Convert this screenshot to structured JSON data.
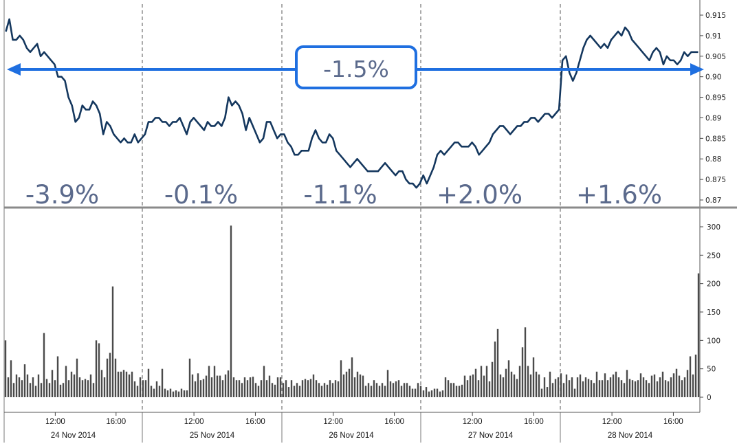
{
  "colors": {
    "price_line": "#14375e",
    "volume_bar": "#4a4a4a",
    "arrow": "#1f6fe0",
    "annotation_text": "#5b6a8c",
    "panel_divider": "#8a8a8a",
    "day_separator": "#555555"
  },
  "chart_data": [
    {
      "type": "line",
      "title": "",
      "xlabel": "",
      "ylabel": "",
      "y_axis_position": "right",
      "ylim": [
        0.87,
        0.915
      ],
      "yticks": [
        "0.915",
        "0.91",
        "0.905",
        "0.90",
        "0.895",
        "0.89",
        "0.885",
        "0.88",
        "0.875",
        "0.87"
      ],
      "days": [
        "24 Nov 2014",
        "25 Nov 2014",
        "26 Nov 2014",
        "27 Nov 2014",
        "28 Nov 2014"
      ],
      "xticks": [
        "12:00",
        "16:00"
      ],
      "series": [
        {
          "x_step": "15-minute intervals, 40 per day",
          "values": [
            0.911,
            0.914,
            0.909,
            0.909,
            0.91,
            0.909,
            0.907,
            0.906,
            0.907,
            0.908,
            0.905,
            0.906,
            0.905,
            0.904,
            0.903,
            0.9,
            0.9,
            0.899,
            0.895,
            0.893,
            0.889,
            0.89,
            0.893,
            0.892,
            0.892,
            0.894,
            0.893,
            0.891,
            0.886,
            0.889,
            0.888,
            0.886,
            0.885,
            0.884,
            0.885,
            0.884,
            0.884,
            0.886,
            0.884,
            0.885,
            0.886,
            0.889,
            0.889,
            0.89,
            0.89,
            0.889,
            0.889,
            0.888,
            0.889,
            0.889,
            0.89,
            0.888,
            0.886,
            0.889,
            0.89,
            0.889,
            0.888,
            0.887,
            0.889,
            0.888,
            0.888,
            0.889,
            0.888,
            0.89,
            0.895,
            0.893,
            0.894,
            0.893,
            0.891,
            0.887,
            0.89,
            0.888,
            0.886,
            0.884,
            0.885,
            0.889,
            0.889,
            0.887,
            0.885,
            0.886,
            0.886,
            0.884,
            0.883,
            0.881,
            0.881,
            0.882,
            0.882,
            0.882,
            0.885,
            0.887,
            0.885,
            0.884,
            0.884,
            0.886,
            0.885,
            0.882,
            0.881,
            0.88,
            0.879,
            0.878,
            0.879,
            0.88,
            0.879,
            0.878,
            0.877,
            0.877,
            0.877,
            0.877,
            0.878,
            0.879,
            0.878,
            0.877,
            0.876,
            0.877,
            0.877,
            0.875,
            0.874,
            0.874,
            0.873,
            0.874,
            0.876,
            0.874,
            0.876,
            0.878,
            0.881,
            0.882,
            0.881,
            0.882,
            0.883,
            0.884,
            0.884,
            0.883,
            0.883,
            0.883,
            0.884,
            0.883,
            0.881,
            0.882,
            0.883,
            0.884,
            0.886,
            0.887,
            0.888,
            0.888,
            0.887,
            0.886,
            0.887,
            0.888,
            0.888,
            0.889,
            0.889,
            0.89,
            0.89,
            0.889,
            0.89,
            0.891,
            0.891,
            0.89,
            0.891,
            0.892,
            0.904,
            0.905,
            0.901,
            0.899,
            0.901,
            0.904,
            0.907,
            0.909,
            0.91,
            0.909,
            0.908,
            0.907,
            0.908,
            0.907,
            0.909,
            0.91,
            0.911,
            0.91,
            0.912,
            0.911,
            0.909,
            0.908,
            0.907,
            0.906,
            0.905,
            0.904,
            0.906,
            0.907,
            0.906,
            0.903,
            0.905,
            0.904,
            0.904,
            0.903,
            0.904,
            0.906,
            0.905,
            0.906,
            0.906,
            0.906
          ]
        }
      ],
      "annotations": {
        "day_changes": [
          "-3.9%",
          "-0.1%",
          "-1.1%",
          "+2.0%",
          "+1.6%"
        ],
        "total_change": "-1.5%"
      }
    },
    {
      "type": "bar",
      "title": "",
      "xlabel": "",
      "ylabel": "",
      "y_axis_position": "right",
      "ylim": [
        0,
        300
      ],
      "yticks": [
        "300",
        "250",
        "200",
        "150",
        "100",
        "50",
        "0"
      ],
      "series": [
        {
          "x_step": "15-minute intervals, 40 per day",
          "values": [
            100,
            35,
            65,
            25,
            40,
            35,
            30,
            58,
            40,
            25,
            35,
            20,
            40,
            25,
            113,
            32,
            25,
            48,
            30,
            72,
            22,
            25,
            55,
            30,
            45,
            40,
            68,
            35,
            30,
            32,
            30,
            40,
            25,
            100,
            95,
            48,
            35,
            68,
            78,
            195,
            68,
            45,
            45,
            48,
            45,
            40,
            45,
            28,
            20,
            35,
            30,
            30,
            50,
            20,
            15,
            28,
            20,
            50,
            15,
            12,
            15,
            10,
            12,
            10,
            15,
            12,
            12,
            68,
            40,
            28,
            42,
            30,
            32,
            38,
            55,
            35,
            55,
            38,
            38,
            30,
            40,
            47,
            302,
            35,
            30,
            30,
            25,
            35,
            30,
            35,
            36,
            25,
            20,
            30,
            55,
            30,
            38,
            25,
            22,
            35,
            35,
            25,
            30,
            18,
            30,
            20,
            25,
            20,
            30,
            32,
            30,
            32,
            40,
            30,
            25,
            20,
            25,
            22,
            30,
            25,
            30,
            28,
            65,
            40,
            45,
            50,
            70,
            35,
            45,
            40,
            38,
            20,
            25,
            20,
            30,
            25,
            20,
            25,
            20,
            48,
            28,
            25,
            28,
            30,
            20,
            25,
            25,
            20,
            15,
            15,
            25,
            20,
            12,
            18,
            10,
            12,
            15,
            15,
            10,
            12,
            35,
            30,
            25,
            25,
            20,
            20,
            22,
            38,
            30,
            38,
            40,
            50,
            30,
            55,
            38,
            55,
            28,
            62,
            98,
            120,
            40,
            35,
            50,
            65,
            45,
            40,
            32,
            55,
            88,
            123,
            55,
            40,
            70,
            45,
            40,
            15,
            35,
            18,
            45,
            25,
            32,
            35,
            42,
            25,
            40,
            30,
            35,
            15,
            35,
            40,
            28,
            35,
            32,
            30,
            25,
            45,
            30,
            30,
            42,
            30,
            35,
            40,
            45,
            35,
            30,
            25,
            48,
            32,
            30,
            28,
            30,
            42,
            35,
            30,
            25,
            38,
            40,
            28,
            35,
            45,
            30,
            28,
            35,
            42,
            50,
            38,
            30,
            35,
            48,
            72,
            40,
            75,
            218
          ]
        }
      ]
    }
  ]
}
